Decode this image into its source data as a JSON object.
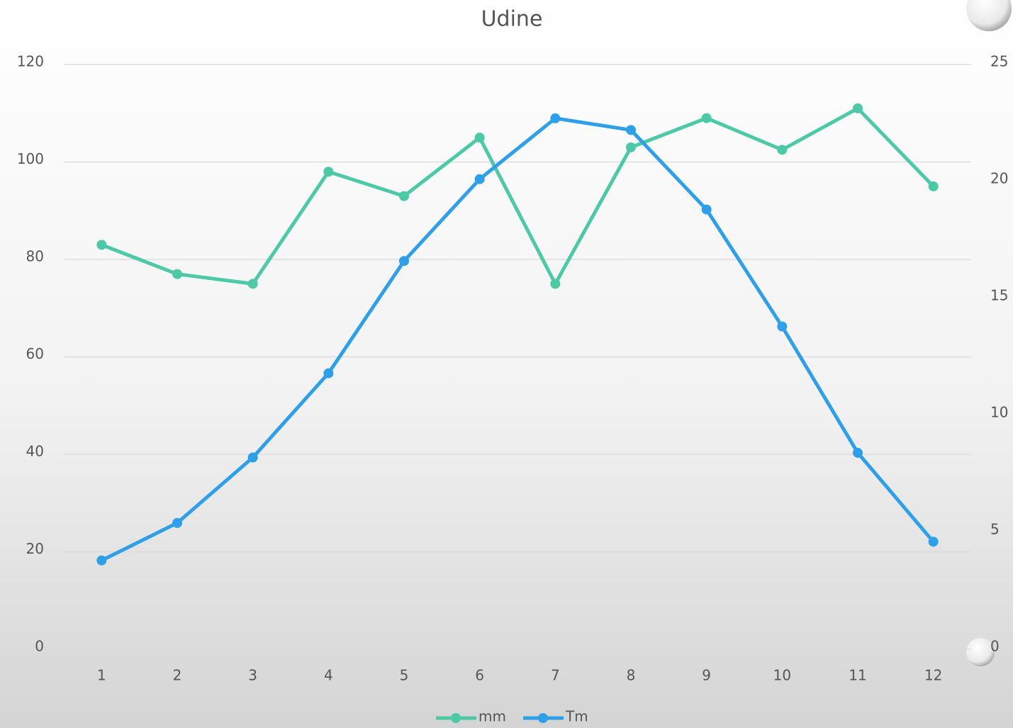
{
  "chart_data": {
    "type": "line",
    "title": "Udine",
    "categories": [
      "1",
      "2",
      "3",
      "4",
      "5",
      "6",
      "7",
      "8",
      "9",
      "10",
      "11",
      "12"
    ],
    "series": [
      {
        "name": "mm",
        "color": "#4dc9a7",
        "values": [
          83,
          77,
          75,
          98,
          93,
          105,
          75,
          103,
          109,
          102.5,
          111,
          95
        ]
      },
      {
        "name": "Tm",
        "color": "#2f9fe8",
        "axis": "y2",
        "values": [
          3.8,
          5.4,
          8.2,
          11.8,
          16.6,
          20.1,
          22.7,
          22.2,
          18.8,
          13.8,
          8.4,
          4.6
        ]
      }
    ],
    "ylim": [
      0,
      120
    ],
    "yticks": [
      0,
      20,
      40,
      60,
      80,
      100,
      120
    ],
    "y2lim": [
      0,
      25
    ],
    "y2ticks": [
      0,
      5,
      10,
      15,
      20,
      25
    ],
    "grid": true,
    "legend": "bottom"
  }
}
